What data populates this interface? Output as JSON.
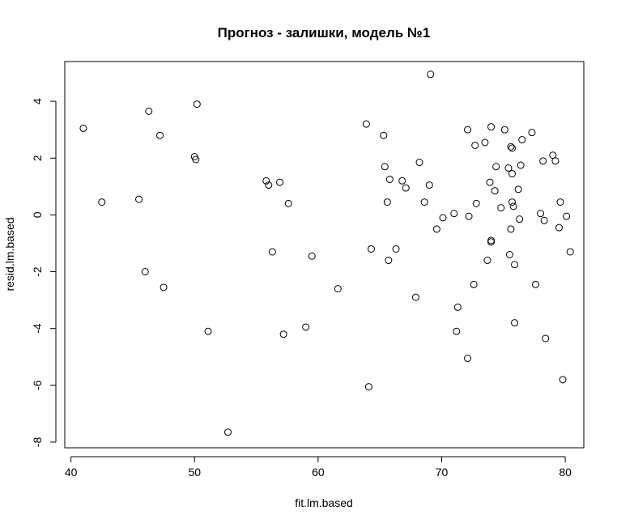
{
  "chart_data": {
    "type": "scatter",
    "title": "Прогноз - залишки, модель №1",
    "xlabel": "fit.lm.based",
    "ylabel": "resid.lm.based",
    "xlim": [
      39.5,
      81.5
    ],
    "ylim": [
      -8.2,
      5.4
    ],
    "x_ticks": [
      40,
      50,
      60,
      70,
      80
    ],
    "y_ticks": [
      -8,
      -6,
      -4,
      -2,
      0,
      2,
      4
    ],
    "x_tick_labels": [
      "40",
      "50",
      "60",
      "70",
      "80"
    ],
    "y_tick_labels": [
      "-8",
      "-6",
      "-4",
      "-2",
      "0",
      "2",
      "4"
    ],
    "marker": "open-circle",
    "grid": false,
    "points": [
      {
        "x": 41.0,
        "y": 3.05
      },
      {
        "x": 42.5,
        "y": 0.45
      },
      {
        "x": 45.5,
        "y": 0.55
      },
      {
        "x": 46.0,
        "y": -2.0
      },
      {
        "x": 46.3,
        "y": 3.65
      },
      {
        "x": 47.2,
        "y": 2.8
      },
      {
        "x": 47.5,
        "y": -2.55
      },
      {
        "x": 50.0,
        "y": 2.05
      },
      {
        "x": 50.1,
        "y": 1.95
      },
      {
        "x": 50.2,
        "y": 3.9
      },
      {
        "x": 51.1,
        "y": -4.1
      },
      {
        "x": 52.7,
        "y": -7.65
      },
      {
        "x": 55.8,
        "y": 1.2
      },
      {
        "x": 56.0,
        "y": 1.05
      },
      {
        "x": 56.3,
        "y": -1.3
      },
      {
        "x": 56.9,
        "y": 1.15
      },
      {
        "x": 57.2,
        "y": -4.2
      },
      {
        "x": 57.6,
        "y": 0.4
      },
      {
        "x": 59.0,
        "y": -3.95
      },
      {
        "x": 59.5,
        "y": -1.45
      },
      {
        "x": 61.6,
        "y": -2.6
      },
      {
        "x": 63.9,
        "y": 3.2
      },
      {
        "x": 64.1,
        "y": -6.05
      },
      {
        "x": 64.3,
        "y": -1.2
      },
      {
        "x": 65.3,
        "y": 2.8
      },
      {
        "x": 65.4,
        "y": 1.7
      },
      {
        "x": 65.6,
        "y": 0.45
      },
      {
        "x": 65.7,
        "y": -1.6
      },
      {
        "x": 65.8,
        "y": 1.25
      },
      {
        "x": 66.3,
        "y": -1.2
      },
      {
        "x": 66.8,
        "y": 1.2
      },
      {
        "x": 67.1,
        "y": 0.95
      },
      {
        "x": 67.9,
        "y": -2.9
      },
      {
        "x": 68.2,
        "y": 1.85
      },
      {
        "x": 68.6,
        "y": 0.45
      },
      {
        "x": 69.0,
        "y": 1.05
      },
      {
        "x": 69.1,
        "y": 4.95
      },
      {
        "x": 69.6,
        "y": -0.5
      },
      {
        "x": 70.1,
        "y": -0.1
      },
      {
        "x": 71.0,
        "y": 0.05
      },
      {
        "x": 71.2,
        "y": -4.1
      },
      {
        "x": 71.3,
        "y": -3.25
      },
      {
        "x": 72.1,
        "y": 3.0
      },
      {
        "x": 72.1,
        "y": -5.05
      },
      {
        "x": 72.2,
        "y": -0.05
      },
      {
        "x": 72.6,
        "y": -2.45
      },
      {
        "x": 72.7,
        "y": 2.45
      },
      {
        "x": 72.8,
        "y": 0.4
      },
      {
        "x": 73.5,
        "y": 2.55
      },
      {
        "x": 73.7,
        "y": -1.6
      },
      {
        "x": 73.9,
        "y": 1.15
      },
      {
        "x": 74.0,
        "y": 3.1
      },
      {
        "x": 74.0,
        "y": -0.9
      },
      {
        "x": 74.0,
        "y": -0.95
      },
      {
        "x": 74.3,
        "y": 0.85
      },
      {
        "x": 74.4,
        "y": 1.7
      },
      {
        "x": 74.8,
        "y": 0.25
      },
      {
        "x": 75.1,
        "y": 3.0
      },
      {
        "x": 75.4,
        "y": 1.65
      },
      {
        "x": 75.5,
        "y": -1.4
      },
      {
        "x": 75.6,
        "y": 2.4
      },
      {
        "x": 75.6,
        "y": -0.5
      },
      {
        "x": 75.7,
        "y": 2.35
      },
      {
        "x": 75.7,
        "y": 1.45
      },
      {
        "x": 75.7,
        "y": 0.45
      },
      {
        "x": 75.8,
        "y": 0.3
      },
      {
        "x": 75.9,
        "y": -3.8
      },
      {
        "x": 75.9,
        "y": -1.75
      },
      {
        "x": 76.2,
        "y": 0.9
      },
      {
        "x": 76.3,
        "y": -0.15
      },
      {
        "x": 76.4,
        "y": 1.75
      },
      {
        "x": 76.5,
        "y": 2.65
      },
      {
        "x": 77.3,
        "y": 2.9
      },
      {
        "x": 77.6,
        "y": -2.45
      },
      {
        "x": 78.0,
        "y": 0.05
      },
      {
        "x": 78.2,
        "y": 1.9
      },
      {
        "x": 78.3,
        "y": -0.2
      },
      {
        "x": 78.4,
        "y": -4.35
      },
      {
        "x": 79.0,
        "y": 2.1
      },
      {
        "x": 79.2,
        "y": 1.9
      },
      {
        "x": 79.5,
        "y": -0.45
      },
      {
        "x": 79.6,
        "y": 0.45
      },
      {
        "x": 79.8,
        "y": -5.8
      },
      {
        "x": 80.1,
        "y": -0.05
      },
      {
        "x": 80.4,
        "y": -1.3
      }
    ]
  }
}
